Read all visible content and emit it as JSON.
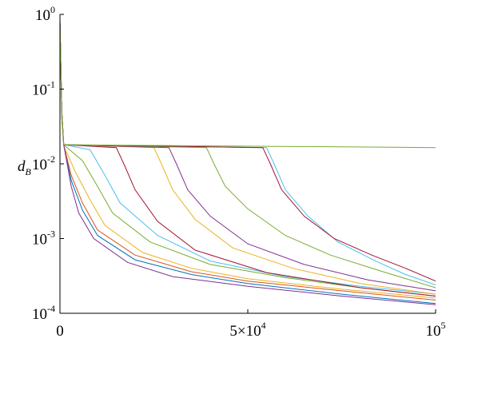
{
  "chart_data": {
    "type": "line",
    "ylabel": {
      "text": "d",
      "subscript": "B"
    },
    "log_y": true,
    "xlim": [
      0,
      100000
    ],
    "ylim": [
      0.0001,
      1
    ],
    "xticks": [
      0,
      {
        "value": 50000,
        "label": "5×10",
        "exponent": "4"
      },
      {
        "value": 100000,
        "label": "10",
        "exponent": "5"
      }
    ],
    "yticks": [
      {
        "value": 0.0001,
        "label": "10",
        "exponent": "-4"
      },
      {
        "value": 0.001,
        "label": "10",
        "exponent": "-3"
      },
      {
        "value": 0.01,
        "label": "10",
        "exponent": "-2"
      },
      {
        "value": 0.1,
        "label": "10",
        "exponent": "-1"
      },
      {
        "value": 1,
        "label": "10",
        "exponent": "0"
      }
    ],
    "series": [
      {
        "color": "#0072BD",
        "x": [
          0,
          500,
          1000,
          3000,
          6000,
          10000,
          20000,
          35000,
          50000,
          75000,
          100000
        ],
        "values": [
          0.8,
          0.05,
          0.018,
          0.006,
          0.0024,
          0.0011,
          0.00052,
          0.00033,
          0.00025,
          0.00018,
          0.000135
        ]
      },
      {
        "color": "#D95319",
        "x": [
          0,
          500,
          1000,
          3000,
          6000,
          10000,
          20000,
          35000,
          50000,
          75000,
          100000
        ],
        "values": [
          0.7,
          0.04,
          0.018,
          0.007,
          0.003,
          0.0013,
          0.0006,
          0.00036,
          0.00027,
          0.0002,
          0.00015
        ]
      },
      {
        "color": "#EDB120",
        "x": [
          0,
          500,
          1000,
          4000,
          8000,
          12000,
          22000,
          35000,
          50000,
          75000,
          100000
        ],
        "values": [
          0.75,
          0.05,
          0.0175,
          0.008,
          0.0033,
          0.0015,
          0.00065,
          0.0004,
          0.00029,
          0.00021,
          0.00016
        ]
      },
      {
        "color": "#7E2F8E",
        "x": [
          0,
          500,
          1000,
          3000,
          5000,
          9000,
          18000,
          30000,
          50000,
          75000,
          100000
        ],
        "values": [
          0.85,
          0.05,
          0.018,
          0.005,
          0.0022,
          0.001,
          0.00048,
          0.00031,
          0.00023,
          0.00017,
          0.00013
        ]
      },
      {
        "color": "#77AC30",
        "x": [
          0,
          500,
          1000,
          6000,
          10000,
          14000,
          24000,
          40000,
          60000,
          80000,
          100000
        ],
        "values": [
          0.8,
          0.05,
          0.018,
          0.011,
          0.005,
          0.0022,
          0.0009,
          0.00045,
          0.0003,
          0.00022,
          0.00017
        ]
      },
      {
        "color": "#4DBEEE",
        "x": [
          0,
          500,
          1000,
          8000,
          12000,
          16000,
          26000,
          40000,
          60000,
          80000,
          100000
        ],
        "values": [
          0.7,
          0.05,
          0.018,
          0.0155,
          0.007,
          0.003,
          0.0011,
          0.0005,
          0.00031,
          0.00023,
          0.00018
        ]
      },
      {
        "color": "#A2142F",
        "x": [
          0,
          500,
          1000,
          15000,
          17000,
          20000,
          26000,
          36000,
          55000,
          80000,
          100000
        ],
        "values": [
          0.8,
          0.05,
          0.018,
          0.0165,
          0.01,
          0.0045,
          0.0017,
          0.0007,
          0.00035,
          0.00022,
          0.00017
        ]
      },
      {
        "color": "#EDB120",
        "x": [
          0,
          500,
          1000,
          25000,
          27000,
          30000,
          36000,
          46000,
          62000,
          80000,
          100000
        ],
        "values": [
          0.8,
          0.05,
          0.018,
          0.0165,
          0.01,
          0.0045,
          0.0018,
          0.00075,
          0.0004,
          0.00025,
          0.00018
        ]
      },
      {
        "color": "#7E2F8E",
        "x": [
          0,
          500,
          1000,
          29000,
          31000,
          34000,
          40000,
          50000,
          65000,
          82000,
          100000
        ],
        "values": [
          0.8,
          0.05,
          0.018,
          0.0165,
          0.01,
          0.0045,
          0.002,
          0.00085,
          0.00045,
          0.00028,
          0.0002
        ]
      },
      {
        "color": "#77AC30",
        "x": [
          0,
          500,
          1000,
          39000,
          41000,
          44000,
          50000,
          60000,
          72000,
          86000,
          100000
        ],
        "values": [
          0.8,
          0.05,
          0.018,
          0.0165,
          0.01,
          0.005,
          0.0025,
          0.0011,
          0.0006,
          0.00036,
          0.00022
        ]
      },
      {
        "color": "#4DBEEE",
        "x": [
          0,
          500,
          1000,
          55000,
          57000,
          60000,
          66000,
          74000,
          84000,
          92000,
          100000
        ],
        "values": [
          0.8,
          0.05,
          0.018,
          0.0165,
          0.01,
          0.0045,
          0.002,
          0.0009,
          0.0005,
          0.00033,
          0.00024
        ]
      },
      {
        "color": "#A2142F",
        "x": [
          0,
          500,
          1000,
          54000,
          56000,
          59000,
          65000,
          73000,
          83000,
          92000,
          100000
        ],
        "values": [
          0.8,
          0.05,
          0.018,
          0.0165,
          0.01,
          0.0045,
          0.002,
          0.001,
          0.0006,
          0.0004,
          0.00027
        ]
      },
      {
        "color": "#77AC30",
        "x": [
          0,
          500,
          1000,
          100000
        ],
        "values": [
          0.8,
          0.05,
          0.018,
          0.0165
        ]
      }
    ]
  }
}
